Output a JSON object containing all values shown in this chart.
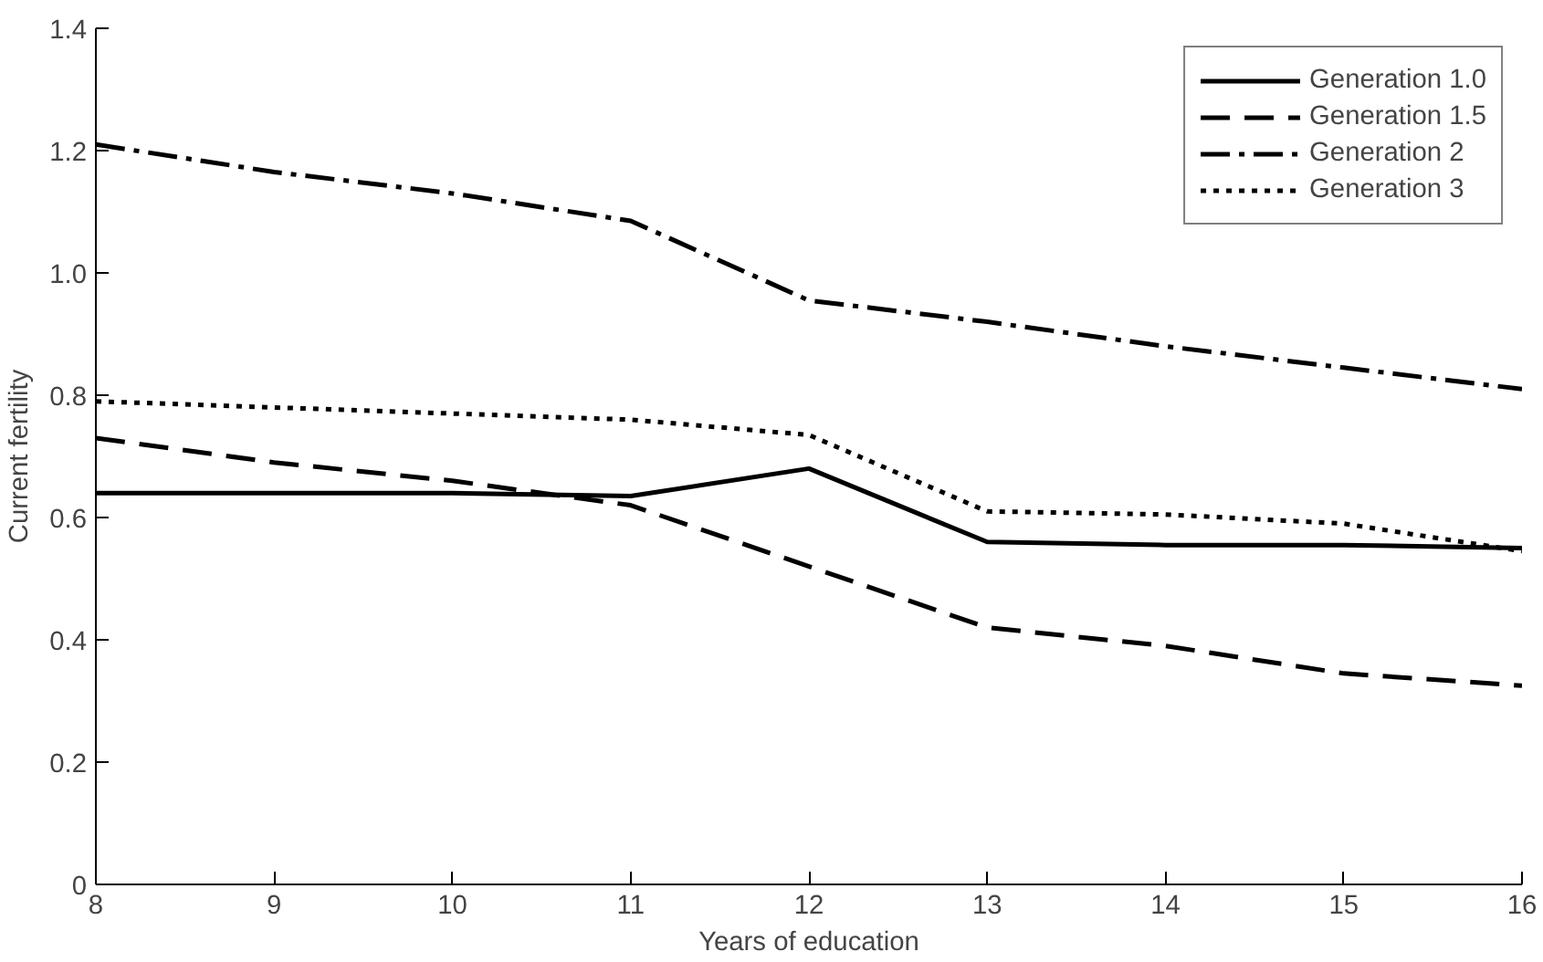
{
  "chart_data": {
    "type": "line",
    "xlabel": "Years of education",
    "ylabel": "Current fertility",
    "x": [
      8,
      9,
      10,
      11,
      12,
      13,
      14,
      15,
      16
    ],
    "series": [
      {
        "name": "Generation 1.0",
        "color": "#000000",
        "line_style": "solid",
        "values": [
          0.64,
          0.64,
          0.64,
          0.635,
          0.68,
          0.56,
          0.555,
          0.555,
          0.55
        ]
      },
      {
        "name": "Generation 1.5",
        "color": "#000000",
        "line_style": "dashed",
        "values": [
          0.73,
          0.69,
          0.66,
          0.62,
          0.52,
          0.42,
          0.39,
          0.345,
          0.325
        ]
      },
      {
        "name": "Generation 2",
        "color": "#000000",
        "line_style": "dashdot",
        "values": [
          1.21,
          1.165,
          1.13,
          1.085,
          0.955,
          0.92,
          0.88,
          0.845,
          0.81
        ]
      },
      {
        "name": "Generation 3",
        "color": "#000000",
        "line_style": "dotted",
        "values": [
          0.79,
          0.78,
          0.77,
          0.76,
          0.735,
          0.61,
          0.605,
          0.59,
          0.545
        ]
      }
    ],
    "xlim": [
      8,
      16
    ],
    "xticks": [
      8,
      9,
      10,
      11,
      12,
      13,
      14,
      15,
      16
    ],
    "ylim": [
      0,
      1.4
    ],
    "yticks": [
      0,
      0.2,
      0.4,
      0.6,
      0.8,
      {
        "value": 1.0,
        "label": "1.0"
      },
      1.2,
      1.4
    ],
    "grid": false,
    "legend": "top right",
    "marker": "none"
  }
}
